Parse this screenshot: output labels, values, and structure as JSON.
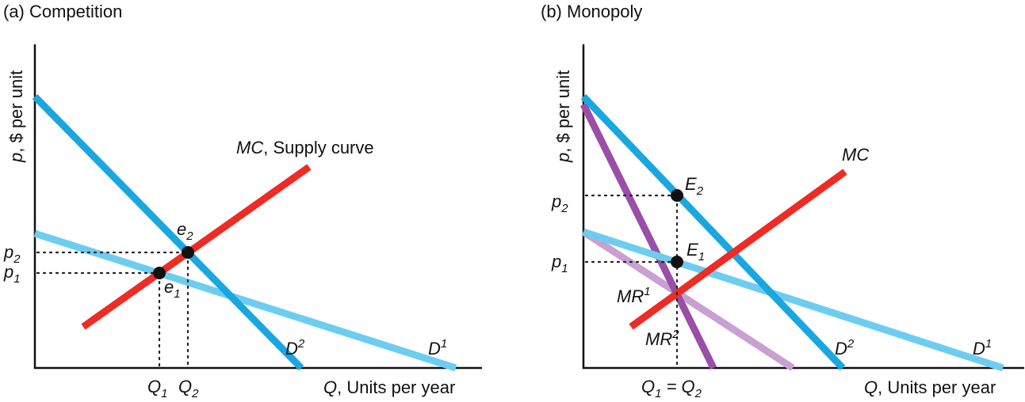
{
  "panels": {
    "a": {
      "title": "(a) Competition",
      "ylabel_p": "p",
      "ylabel_rest": ", $ per unit",
      "xlabel_q": "Q",
      "xlabel_rest": ", Units per year",
      "mc_label_main": "MC",
      "mc_label_rest": ", Supply curve",
      "d1_main": "D",
      "d1_sup": "1",
      "d2_main": "D",
      "d2_sup": "2",
      "e1_main": "e",
      "e1_sub": "1",
      "e2_main": "e",
      "e2_sub": "2",
      "p1_main": "p",
      "p1_sub": "1",
      "p2_main": "p",
      "p2_sub": "2",
      "q1_main": "Q",
      "q1_sub": "1",
      "q2_main": "Q",
      "q2_sub": "2"
    },
    "b": {
      "title": "(b) Monopoly",
      "ylabel_p": "p",
      "ylabel_rest": ", $ per unit",
      "xlabel_q": "Q",
      "xlabel_rest": ", Units per year",
      "mc_label": "MC",
      "d1_main": "D",
      "d1_sup": "1",
      "d2_main": "D",
      "d2_sup": "2",
      "mr1_main": "MR",
      "mr1_sup": "1",
      "mr2_main": "MR",
      "mr2_sup": "2",
      "E1_main": "E",
      "E1_sub": "1",
      "E2_main": "E",
      "E2_sub": "2",
      "p1_main": "p",
      "p1_sub": "1",
      "p2_main": "p",
      "p2_sub": "2",
      "q_eq": "Q",
      "q_eq_sub1": "1",
      "q_eq_mid": " = Q",
      "q_eq_sub2": "2"
    }
  },
  "colors": {
    "demand_dark": "#1aa7e0",
    "demand_light": "#6dcdf0",
    "mc": "#ee2b24",
    "mr_dark": "#9a4fa6",
    "mr_light": "#c9a0d2"
  }
}
